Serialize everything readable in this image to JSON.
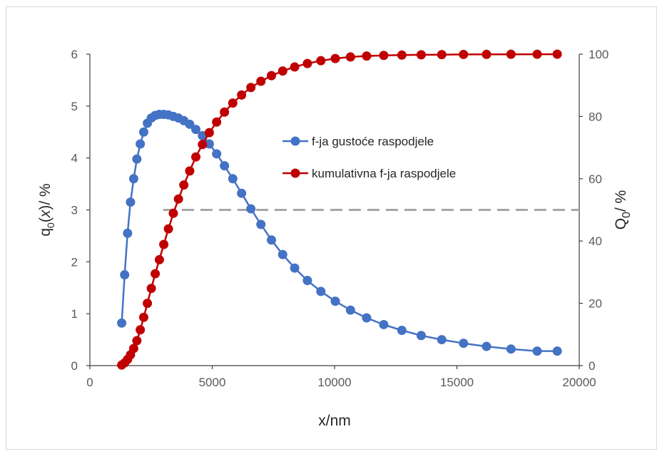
{
  "chart_data": {
    "type": "line",
    "title": "",
    "xlabel": "x/nm",
    "xlim": [
      0,
      20000
    ],
    "xticks": [
      0,
      5000,
      10000,
      15000,
      20000
    ],
    "y_left": {
      "label_main": "q",
      "label_sub": "0",
      "label_mid": "(",
      "label_var": "x",
      "label_end": ")/ %",
      "lim": [
        0,
        6
      ],
      "ticks": [
        0,
        1,
        2,
        3,
        4,
        5,
        6
      ],
      "color": "#4472c4"
    },
    "y_right": {
      "label_main": "Q",
      "label_sub": "0",
      "label_end": "/ %",
      "lim": [
        0,
        100
      ],
      "ticks": [
        0,
        20,
        40,
        60,
        80,
        100
      ],
      "color": "#c00000"
    },
    "legend_position": "center-right",
    "series": [
      {
        "name": "f-ja gustoće raspodjele",
        "axis": "left",
        "color": "#4472c4",
        "x": [
          1300,
          1420,
          1540,
          1660,
          1790,
          1920,
          2060,
          2200,
          2350,
          2510,
          2670,
          2840,
          3020,
          3210,
          3410,
          3620,
          3840,
          4080,
          4330,
          4600,
          4880,
          5180,
          5500,
          5840,
          6200,
          6580,
          6990,
          7420,
          7880,
          8370,
          8890,
          9440,
          10030,
          10650,
          11310,
          12010,
          12750,
          13540,
          14380,
          15270,
          16210,
          17210,
          18280,
          19100
        ],
        "y": [
          0.82,
          1.75,
          2.55,
          3.15,
          3.6,
          3.98,
          4.27,
          4.5,
          4.67,
          4.77,
          4.82,
          4.84,
          4.84,
          4.83,
          4.8,
          4.77,
          4.72,
          4.65,
          4.55,
          4.43,
          4.27,
          4.08,
          3.85,
          3.6,
          3.32,
          3.02,
          2.72,
          2.42,
          2.14,
          1.88,
          1.64,
          1.43,
          1.24,
          1.07,
          0.92,
          0.79,
          0.68,
          0.58,
          0.5,
          0.43,
          0.37,
          0.32,
          0.28,
          0.28
        ]
      },
      {
        "name": "kumulativna f-ja raspodjele",
        "axis": "right",
        "color": "#c00000",
        "x": [
          1300,
          1420,
          1540,
          1660,
          1790,
          1920,
          2060,
          2200,
          2350,
          2510,
          2670,
          2840,
          3020,
          3210,
          3410,
          3620,
          3840,
          4080,
          4330,
          4600,
          4880,
          5180,
          5500,
          5840,
          6200,
          6580,
          6990,
          7420,
          7880,
          8370,
          8890,
          9440,
          10030,
          10650,
          11310,
          12010,
          12750,
          13540,
          14380,
          15270,
          16210,
          17210,
          18280,
          19100
        ],
        "y": [
          0.2,
          0.9,
          2.0,
          3.5,
          5.5,
          8.0,
          11.5,
          15.5,
          20.0,
          24.8,
          29.5,
          34.0,
          38.9,
          43.9,
          48.9,
          53.5,
          58.0,
          62.5,
          67.0,
          71.0,
          74.8,
          78.2,
          81.4,
          84.3,
          86.9,
          89.3,
          91.3,
          93.1,
          94.6,
          95.9,
          97.0,
          97.9,
          98.6,
          99.1,
          99.4,
          99.6,
          99.7,
          99.8,
          99.85,
          99.9,
          99.93,
          99.96,
          99.98,
          100
        ]
      }
    ],
    "reference_line": {
      "axis": "left",
      "y": 3,
      "x_from": 3000,
      "x_to": 20000,
      "color": "#a6a6a6",
      "style": "dashed"
    }
  }
}
